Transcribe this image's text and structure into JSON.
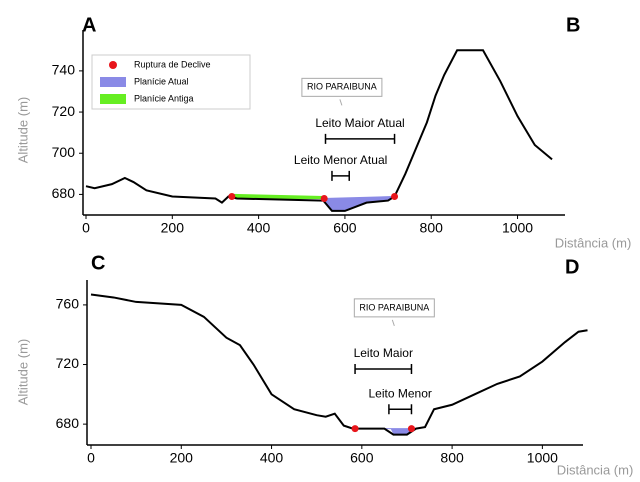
{
  "chart_data": [
    {
      "type": "line",
      "corner_labels": [
        "A",
        "B"
      ],
      "x_label": "Distância (m)",
      "y_label": "Altitude (m)",
      "xlim": [
        0,
        1110
      ],
      "ylim": [
        670,
        755
      ],
      "xticks": [
        0,
        200,
        400,
        600,
        800,
        1000
      ],
      "yticks": [
        680,
        700,
        720,
        740
      ],
      "legend": "upper left",
      "series": [
        {
          "color": "#000000",
          "x": [
            0,
            20,
            60,
            90,
            110,
            140,
            200,
            300,
            315,
            330,
            350,
            550,
            570,
            600,
            650,
            700,
            715,
            740,
            760,
            790,
            810,
            830,
            860,
            920,
            960,
            1000,
            1040,
            1080
          ],
          "values": [
            684,
            683,
            685,
            688,
            686,
            682,
            679,
            678,
            676,
            679,
            678,
            677,
            672,
            672,
            676,
            677,
            679,
            690,
            700,
            715,
            728,
            738,
            750,
            750,
            735,
            718,
            704,
            697
          ]
        }
      ],
      "areas": [
        {
          "name": "Planície Atual",
          "color": "#8a8ae6",
          "x": [
            552,
            570,
            600,
            650,
            700,
            715
          ],
          "values": [
            678,
            672,
            672,
            676,
            677,
            679
          ]
        },
        {
          "name": "Planície Antiga",
          "color": "#66ee22",
          "x": [
            340,
            550,
            550,
            340
          ],
          "values": [
            680,
            679,
            678,
            678
          ]
        }
      ],
      "points": {
        "name": "Ruptura de Declive",
        "color": "#e8151b",
        "x": [
          338,
          552,
          715
        ],
        "values": [
          679,
          678,
          679
        ]
      },
      "callout": {
        "text": "RIO PARAIBUNA",
        "x": 593,
        "y": 732
      },
      "brackets": [
        {
          "text": "Leito Maior Atual",
          "x": [
            555,
            715
          ],
          "y": 707
        },
        {
          "text": "Leito Menor Atual",
          "x": [
            570,
            610
          ],
          "y": 689
        }
      ]
    },
    {
      "type": "line",
      "corner_labels": [
        "C",
        "D"
      ],
      "x_label": "Distância (m)",
      "y_label": "Altitude (m)",
      "xlim": [
        0,
        1090
      ],
      "ylim": [
        666,
        770
      ],
      "xticks": [
        0,
        200,
        400,
        600,
        800,
        1000
      ],
      "yticks": [
        680,
        720,
        760
      ],
      "series": [
        {
          "color": "#000000",
          "x": [
            0,
            50,
            100,
            200,
            250,
            300,
            330,
            360,
            400,
            450,
            500,
            520,
            540,
            560,
            580,
            650,
            670,
            700,
            720,
            740,
            760,
            800,
            850,
            900,
            950,
            1000,
            1050,
            1080,
            1100
          ],
          "values": [
            767,
            765,
            762,
            760,
            752,
            738,
            733,
            720,
            700,
            690,
            686,
            685,
            687,
            679,
            677,
            677,
            673,
            673,
            677,
            678,
            690,
            693,
            700,
            707,
            712,
            722,
            735,
            742,
            743
          ]
        }
      ],
      "areas": [
        {
          "color": "#8a8ae6",
          "x": [
            640,
            665,
            672,
            700,
            712
          ],
          "values": [
            677,
            677,
            673,
            673,
            677
          ]
        }
      ],
      "points": {
        "color": "#e8151b",
        "x": [
          585,
          710
        ],
        "values": [
          677,
          677
        ]
      },
      "callout": {
        "text": "RIO PARAIBUNA",
        "x": 672,
        "y": 758
      },
      "brackets": [
        {
          "text": "Leito Maior",
          "x": [
            585,
            710
          ],
          "y": 717
        },
        {
          "text": "Leito Menor",
          "x": [
            660,
            710
          ],
          "y": 690
        }
      ]
    }
  ]
}
